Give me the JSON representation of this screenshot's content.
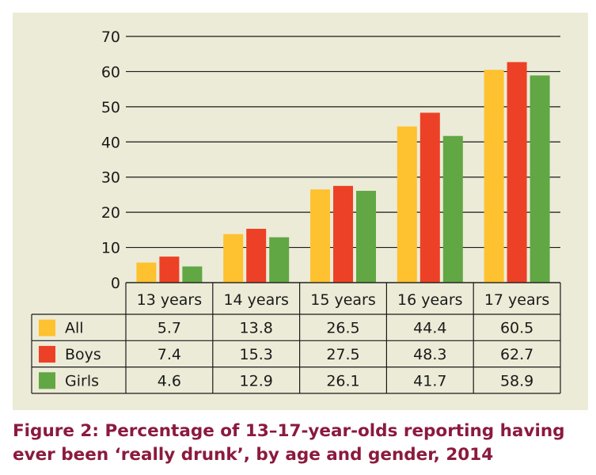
{
  "figure": {
    "caption_line1": "Figure 2: Percentage of 13–17-year-olds reporting having",
    "caption_line2": "ever been ‘really drunk’, by age and gender, 2014"
  },
  "colors": {
    "panel_background": "#ecebd7",
    "caption_text": "#8b1a3e",
    "all": "#fec12f",
    "boys": "#ec4126",
    "girls": "#61a744"
  },
  "chart_data": {
    "type": "bar",
    "categories": [
      "13 years",
      "14 years",
      "15 years",
      "16 years",
      "17 years"
    ],
    "series": [
      {
        "name": "All",
        "color": "#fec12f",
        "values": [
          5.7,
          13.8,
          26.5,
          44.4,
          60.5
        ]
      },
      {
        "name": "Boys",
        "color": "#ec4126",
        "values": [
          7.4,
          15.3,
          27.5,
          48.3,
          62.7
        ]
      },
      {
        "name": "Girls",
        "color": "#61a744",
        "values": [
          4.6,
          12.9,
          26.1,
          41.7,
          58.9
        ]
      }
    ],
    "ylim": [
      0,
      70
    ],
    "yticks": [
      0,
      10,
      20,
      30,
      40,
      50,
      60,
      70
    ],
    "grid": true,
    "legend": "data table below chart",
    "table_values": [
      [
        "5.7",
        "13.8",
        "26.5",
        "44.4",
        "60.5"
      ],
      [
        "7.4",
        "15.3",
        "27.5",
        "48.3",
        "62.7"
      ],
      [
        "4.6",
        "12.9",
        "26.1",
        "41.7",
        "58.9"
      ]
    ]
  }
}
